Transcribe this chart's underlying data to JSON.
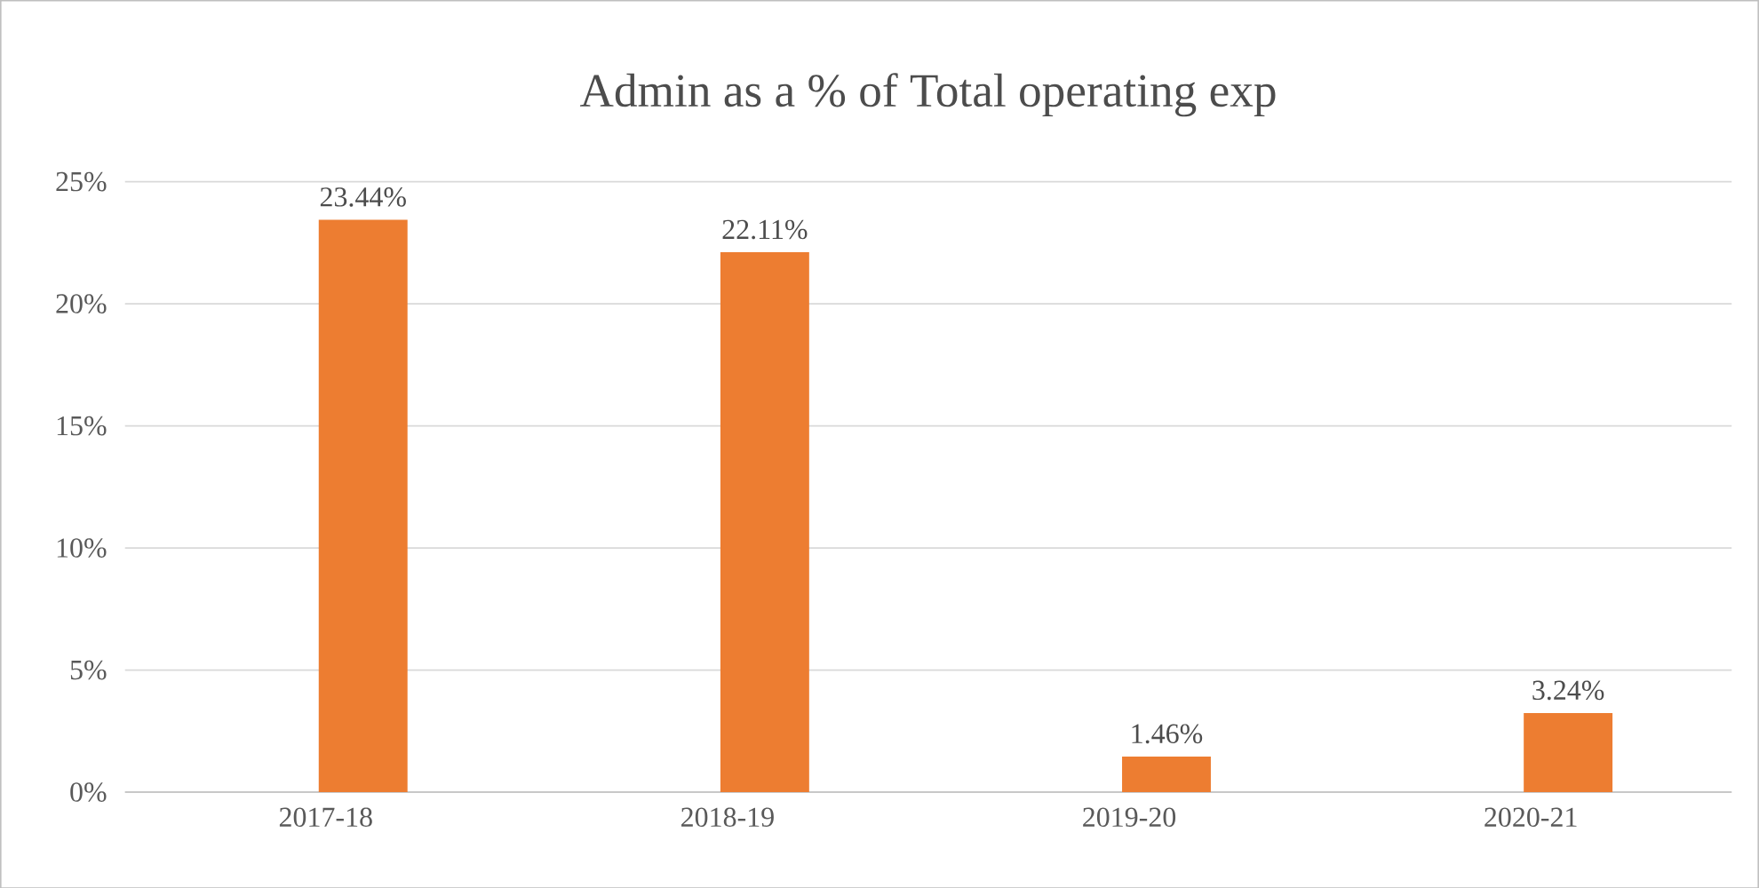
{
  "chart_data": {
    "type": "bar",
    "title": "Admin as a % of Total operating exp",
    "categories": [
      "2017-18",
      "2018-19",
      "2019-20",
      "2020-21"
    ],
    "values": [
      23.44,
      22.11,
      1.46,
      3.24
    ],
    "value_labels": [
      "23.44%",
      "22.11%",
      "1.46%",
      "3.24%"
    ],
    "color": "#ed7d31",
    "ylim": [
      0,
      25
    ],
    "yticks": [
      {
        "value": 0,
        "label": "0%"
      },
      {
        "value": 5,
        "label": "5%"
      },
      {
        "value": 10,
        "label": "10%"
      },
      {
        "value": 15,
        "label": "15%"
      },
      {
        "value": 20,
        "label": "20%"
      },
      {
        "value": 25,
        "label": "25%"
      }
    ],
    "grid": "y"
  }
}
